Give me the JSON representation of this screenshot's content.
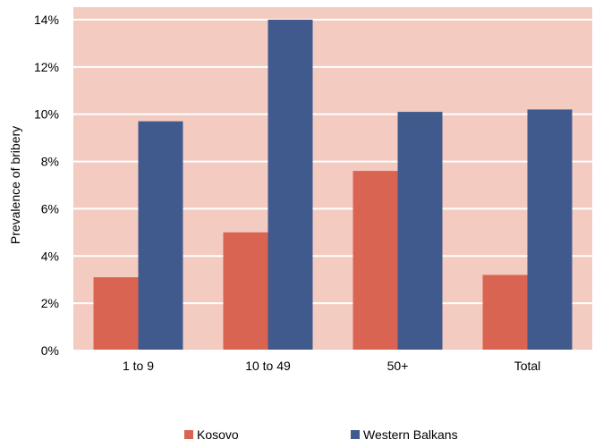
{
  "chart_data": {
    "type": "bar",
    "categories": [
      "1 to 9",
      "10 to 49",
      "50+",
      "Total"
    ],
    "series": [
      {
        "name": "Kosovo",
        "values": [
          3.1,
          5.0,
          7.6,
          3.2
        ],
        "color": "#d96452"
      },
      {
        "name": "Western Balkans",
        "values": [
          9.7,
          14.0,
          10.1,
          10.2
        ],
        "color": "#415a8d"
      }
    ],
    "title": "",
    "xlabel": "",
    "ylabel": "Prevalence of bribery",
    "ylim": [
      0,
      14
    ],
    "yticks": [
      0,
      2,
      4,
      6,
      8,
      10,
      12,
      14
    ],
    "ytick_labels": [
      "0%",
      "2%",
      "4%",
      "6%",
      "8%",
      "10%",
      "12%",
      "14%"
    ],
    "grid": true,
    "legend_position": "bottom",
    "plot_background": "#f4cbc1"
  }
}
